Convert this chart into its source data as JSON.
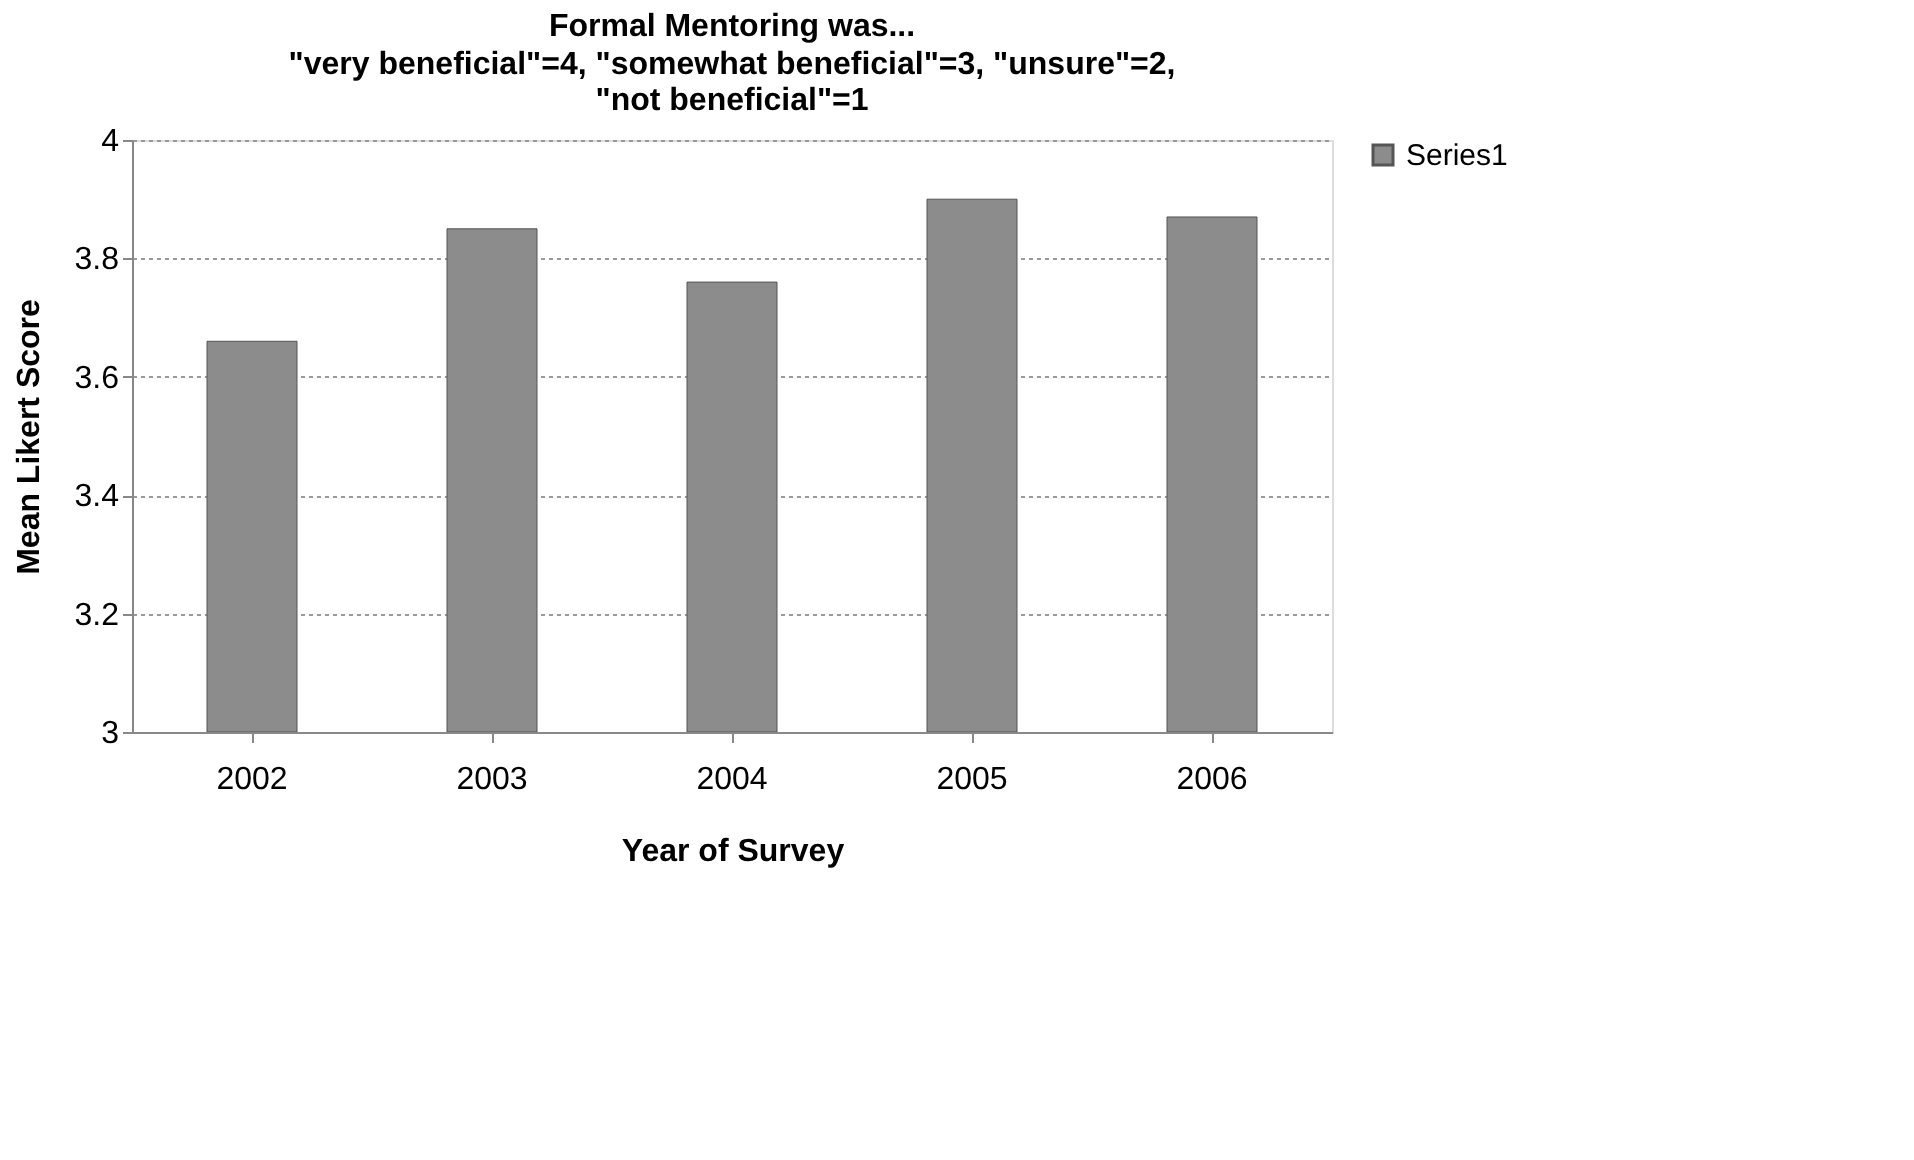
{
  "chart_data": {
    "type": "bar",
    "title": "Formal Mentoring was...",
    "subtitle": "\"very beneficial\"=4, \"somewhat beneficial\"=3, \"unsure\"=2,\n\"not beneficial\"=1",
    "xlabel": "Year of Survey",
    "ylabel": "Mean Likert Score",
    "categories": [
      "2002",
      "2003",
      "2004",
      "2005",
      "2006"
    ],
    "series": [
      {
        "name": "Series1",
        "color": "#8c8c8c",
        "values": [
          3.66,
          3.85,
          3.76,
          3.9,
          3.87
        ]
      }
    ],
    "ylim": [
      3,
      4
    ],
    "yticks": [
      3,
      3.2,
      3.4,
      3.6,
      3.8,
      4
    ],
    "grid": "y",
    "legend": "right"
  }
}
